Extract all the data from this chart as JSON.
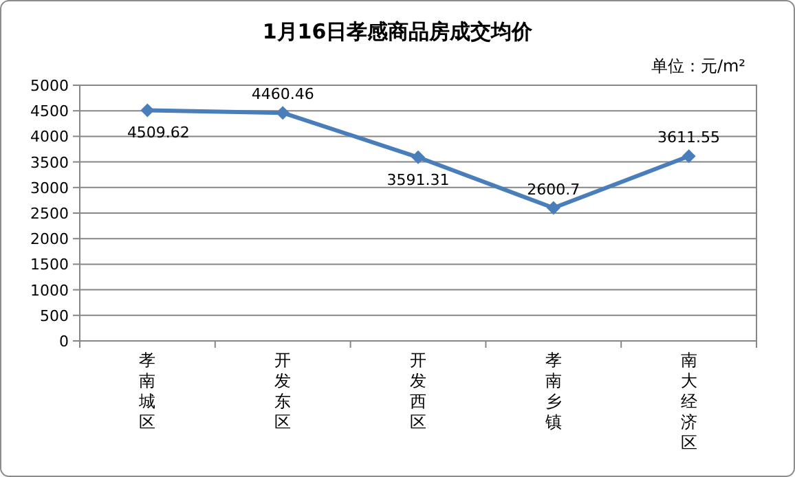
{
  "chart_data": {
    "type": "line",
    "title": "1月16日孝感商品房成交均价",
    "annotations": [
      "单位：元/m²"
    ],
    "categories": [
      "孝南城区",
      "开发东区",
      "开发西区",
      "孝南乡镇",
      "南大经济区"
    ],
    "series": [
      {
        "color": "#4a7ebb",
        "values": [
          4509.62,
          4460.46,
          3591.31,
          2600.7,
          3611.55
        ]
      }
    ],
    "ylim": [
      0,
      5000
    ],
    "yticks": [
      0,
      500,
      1000,
      1500,
      2000,
      2500,
      3000,
      3500,
      4000,
      4500,
      5000
    ],
    "grid": "y",
    "marker": "diamond",
    "data_labels": true
  }
}
